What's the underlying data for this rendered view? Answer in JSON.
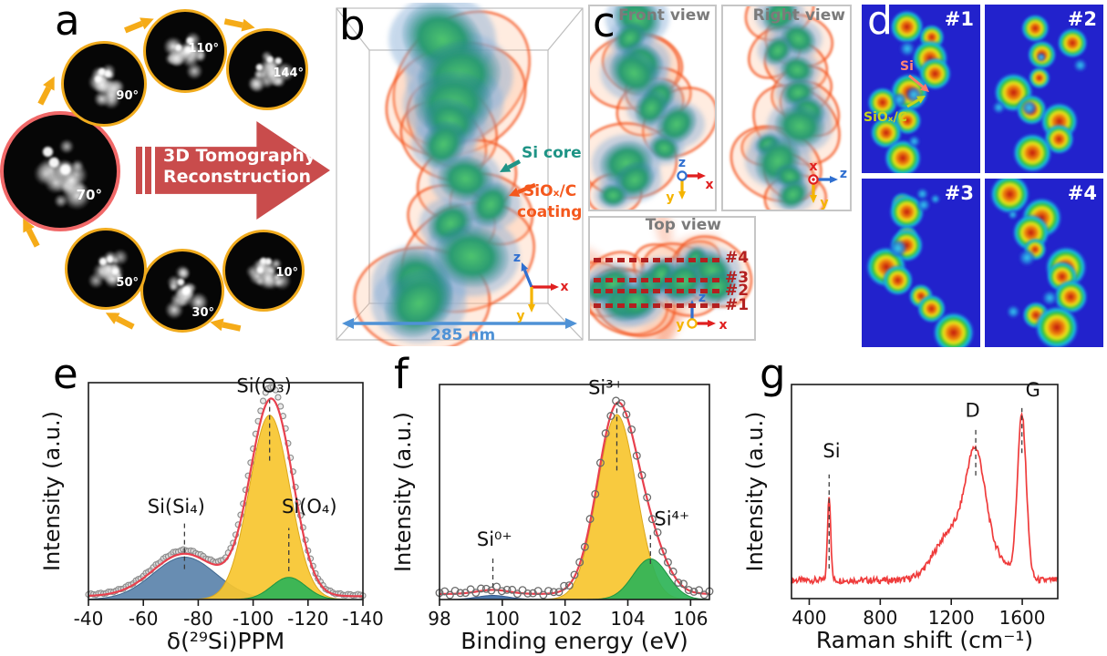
{
  "panels": {
    "a": {
      "letter": "a",
      "tilts": [
        {
          "angle": "10°"
        },
        {
          "angle": "30°"
        },
        {
          "angle": "50°"
        },
        {
          "angle": "70°"
        },
        {
          "angle": "90°"
        },
        {
          "angle": "110°"
        },
        {
          "angle": "144°"
        }
      ],
      "arrow_line1": "3D Tomography",
      "arrow_line2": "Reconstruction"
    },
    "b": {
      "letter": "b",
      "label_core": "Si core",
      "label_coating_line1": "SiOₓ/C",
      "label_coating_line2": "coating",
      "scale_label": "285 nm",
      "axes": {
        "x": "x",
        "y": "y",
        "z": "z"
      }
    },
    "c": {
      "letter": "c",
      "views": [
        {
          "title": "Front view"
        },
        {
          "title": "Right view"
        },
        {
          "title": "Top view"
        }
      ],
      "slices": [
        "#4",
        "#3",
        "#2",
        "#1"
      ]
    },
    "d": {
      "letter": "d",
      "tiles": [
        "#1",
        "#2",
        "#3",
        "#4"
      ],
      "si_label": "Si",
      "coating_label": "SiOₓ/C"
    },
    "e": {
      "letter": "e"
    },
    "f": {
      "letter": "f"
    },
    "g": {
      "letter": "g"
    }
  },
  "colors": {
    "gold_arrow": "#f5ab18",
    "gold_ring": "#f0ab1e",
    "red_ring": "#f06868",
    "banner_red": "#c94c4c",
    "si_core_teal": "#1f9486",
    "coating_orange": "#f4581d",
    "scale_blue": "#4f92d6",
    "slice_red": "#b32020",
    "heatmap_bg": "#2222cc",
    "axis_x": "#e02020",
    "axis_y": "#f5b400",
    "axis_z": "#2f6fd0",
    "fit_red": "#e8404e",
    "fill_blue": "#5b83ab",
    "fill_yellow": "#f7c52f",
    "fill_green": "#2eb457"
  },
  "chart_data": [
    {
      "panel": "e",
      "type": "area",
      "title": "",
      "xlabel": "δ(²⁹Si)PPM",
      "ylabel": "Intensity (a.u.)",
      "x_range": [
        -40,
        -140
      ],
      "x_ticks": [
        -40,
        -60,
        -80,
        -100,
        -120,
        -140
      ],
      "ylim": [
        0,
        1.1
      ],
      "grid": false,
      "baseline": 0.018,
      "y_scale": 0.85,
      "envelope_color": "#e8404e",
      "data_marker": {
        "style": "gray-circles",
        "color": "#8a8a8a"
      },
      "peaks": [
        {
          "label": "Si(Si₄)",
          "center": -75,
          "amplitude": 0.23,
          "sigma": 11.5,
          "fill": "#5b83ab",
          "stroke": "#40688f",
          "label_x": -72,
          "label_y": 0.4,
          "marker": [
            0.14,
            0.36
          ]
        },
        {
          "label": "Si(O₃)",
          "center": -106,
          "amplitude": 1.0,
          "sigma": 7.4,
          "fill": "#f7c52f",
          "stroke": "#dca81c",
          "label_x": -104,
          "label_y": 0.955,
          "marker": [
            0.64,
            0.92
          ]
        },
        {
          "label": "Si(O₄)",
          "center": -113,
          "amplitude": 0.12,
          "sigma": 6.2,
          "fill": "#2eb457",
          "stroke": "#1d9441",
          "label_x": -120.5,
          "label_y": 0.4,
          "marker": [
            0.13,
            0.33
          ]
        }
      ]
    },
    {
      "panel": "f",
      "type": "area",
      "title": "",
      "xlabel": "Binding energy (eV)",
      "ylabel": "Intensity (a.u.)",
      "x_range": [
        98,
        106.6
      ],
      "x_ticks": [
        98,
        100,
        102,
        104,
        106
      ],
      "ylim": [
        0,
        1.1
      ],
      "grid": false,
      "baseline": 0.03,
      "y_scale": 0.86,
      "envelope_color": "#e8404e",
      "data_marker": {
        "style": "open-circles",
        "color": "#6a6a6a"
      },
      "peaks": [
        {
          "label": "Si⁰⁺",
          "center": 99.7,
          "amplitude": 0.022,
          "sigma": 0.5,
          "fill": "#3f6fa8",
          "stroke": "#33598b",
          "label_x": 99.75,
          "label_y": 0.25,
          "marker": [
            0.055,
            0.205
          ]
        },
        {
          "label": "Si³⁺",
          "center": 103.65,
          "amplitude": 1.0,
          "sigma": 0.62,
          "fill": "#f7c52f",
          "stroke": "#dca81c",
          "label_x": 103.3,
          "label_y": 0.955,
          "marker": [
            0.6,
            0.915
          ]
        },
        {
          "label": "Si⁴⁺",
          "center": 104.72,
          "amplitude": 0.22,
          "sigma": 0.55,
          "fill": "#2eb457",
          "stroke": "#1d9441",
          "label_x": 105.4,
          "label_y": 0.345,
          "marker": [
            0.165,
            0.3
          ]
        }
      ]
    },
    {
      "panel": "g",
      "type": "line",
      "title": "",
      "xlabel": "Raman shift (cm⁻¹)",
      "ylabel": "Intensity (a.u.)",
      "x_range": [
        300,
        1800
      ],
      "x_ticks": [
        400,
        800,
        1200,
        1600
      ],
      "ylim": [
        0,
        1.1
      ],
      "grid": false,
      "baseline": 0.09,
      "noise": 0.016,
      "y_scale": 0.95,
      "line_color": "#ef3b3b",
      "peaks": [
        {
          "label": "Si",
          "center": 512,
          "amplitude": 0.42,
          "sigma": 9,
          "label_x": 526,
          "label_y": 0.66,
          "marker": [
            0.14,
            0.58
          ]
        },
        {
          "label": "",
          "center": 1205,
          "amplitude": 0.24,
          "sigma": 95
        },
        {
          "label": "D",
          "center": 1338,
          "amplitude": 0.54,
          "sigma": 55,
          "label_x": 1320,
          "label_y": 0.85,
          "marker": [
            0.575,
            0.79
          ]
        },
        {
          "label": "",
          "center": 1460,
          "amplitude": 0.1,
          "sigma": 70
        },
        {
          "label": "G",
          "center": 1598,
          "amplitude": 0.8,
          "sigma": 25,
          "label_x": 1660,
          "label_y": 0.945,
          "marker": [
            0.68,
            0.89
          ]
        }
      ]
    }
  ]
}
